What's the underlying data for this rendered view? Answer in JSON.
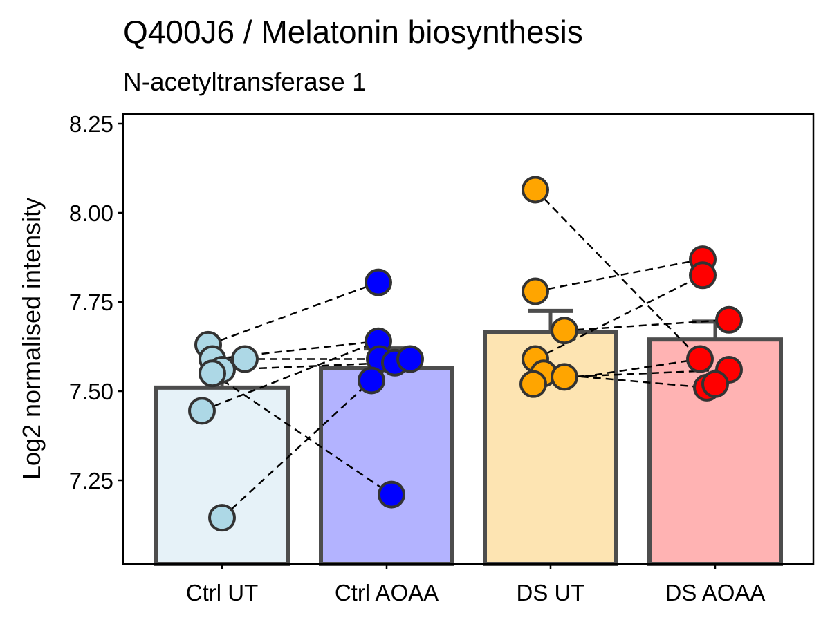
{
  "chart_data": {
    "type": "bar",
    "title": "Q400J6 / Melatonin  biosynthesis",
    "subtitle": "N-acetyltransferase 1",
    "xlabel": "",
    "ylabel": "Log2 normalised intensity",
    "ylim": [
      7.0,
      8.28
    ],
    "yticks": [
      "7.25",
      "7.50",
      "7.75",
      "8.00",
      "8.25"
    ],
    "categories": [
      "Ctrl UT",
      "Ctrl AOAA",
      "DS UT",
      "DS AOAA"
    ],
    "bar_fill_colors": [
      "#e6f2f8",
      "#b3b3ff",
      "#fde4b2",
      "#ffb3b3"
    ],
    "point_colors": [
      "#add8e6",
      "#0000ff",
      "#ffa500",
      "#ff0000"
    ],
    "bar_outline_color": "#4d4d4d",
    "means": [
      7.51,
      7.565,
      7.665,
      7.645
    ],
    "error_upper": [
      7.59,
      7.62,
      7.725,
      7.695
    ],
    "points": [
      [
        7.63,
        7.59,
        7.59,
        7.56,
        7.55,
        7.445,
        7.145
      ],
      [
        7.805,
        7.64,
        7.59,
        7.58,
        7.59,
        7.53,
        7.21
      ],
      [
        8.065,
        7.78,
        7.67,
        7.59,
        7.55,
        7.52,
        7.54
      ],
      [
        7.87,
        7.825,
        7.7,
        7.59,
        7.56,
        7.51,
        7.52
      ]
    ],
    "pairs": [
      {
        "from": [
          0,
          0
        ],
        "to": [
          1,
          0
        ]
      },
      {
        "from": [
          0,
          1
        ],
        "to": [
          1,
          1
        ]
      },
      {
        "from": [
          0,
          2
        ],
        "to": [
          1,
          4
        ]
      },
      {
        "from": [
          0,
          3
        ],
        "to": [
          1,
          3
        ]
      },
      {
        "from": [
          0,
          4
        ],
        "to": [
          1,
          6
        ]
      },
      {
        "from": [
          0,
          5
        ],
        "to": [
          1,
          1
        ]
      },
      {
        "from": [
          0,
          6
        ],
        "to": [
          1,
          5
        ]
      },
      {
        "from": [
          2,
          0
        ],
        "to": [
          3,
          3
        ]
      },
      {
        "from": [
          2,
          1
        ],
        "to": [
          3,
          0
        ]
      },
      {
        "from": [
          2,
          2
        ],
        "to": [
          3,
          2
        ]
      },
      {
        "from": [
          2,
          3
        ],
        "to": [
          3,
          1
        ]
      },
      {
        "from": [
          2,
          4
        ],
        "to": [
          3,
          5
        ]
      },
      {
        "from": [
          2,
          5
        ],
        "to": [
          3,
          3
        ]
      },
      {
        "from": [
          2,
          6
        ],
        "to": [
          3,
          4
        ]
      }
    ],
    "grid": false,
    "legend": "none"
  }
}
